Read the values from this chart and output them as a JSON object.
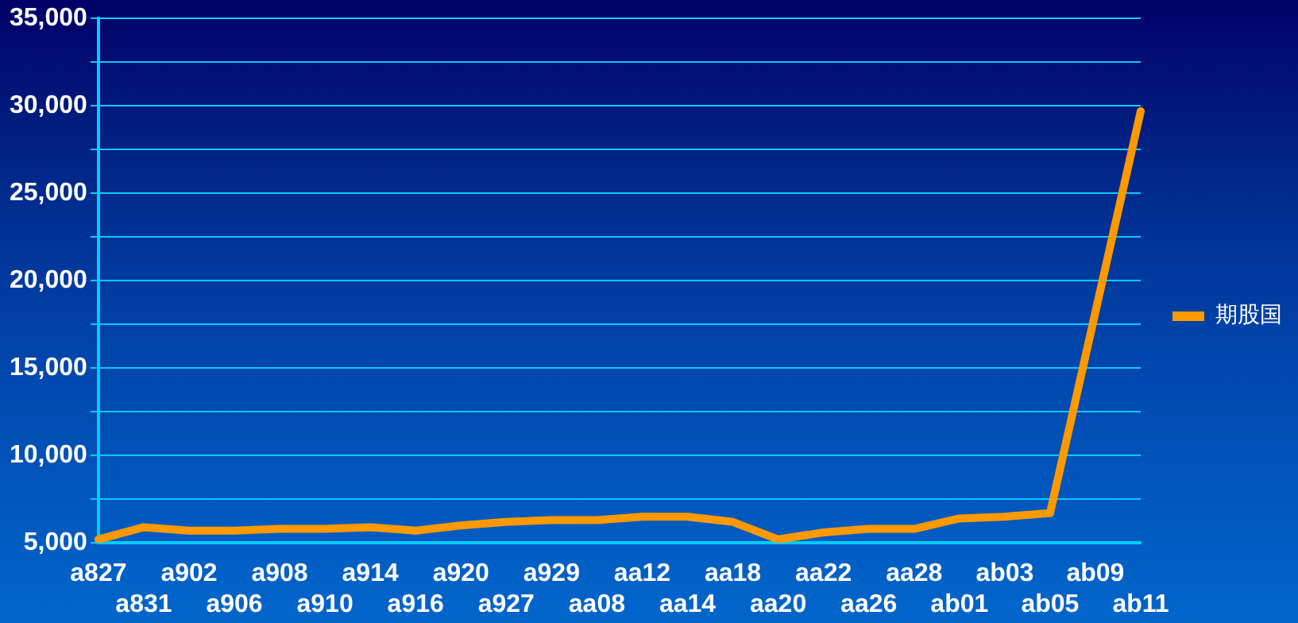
{
  "chart_data": {
    "type": "line",
    "categories": [
      "a827",
      "a831",
      "a902",
      "a906",
      "a908",
      "a910",
      "a914",
      "a916",
      "a920",
      "a927",
      "a929",
      "aa08",
      "aa12",
      "aa14",
      "aa18",
      "aa20",
      "aa22",
      "aa26",
      "aa28",
      "ab01",
      "ab03",
      "ab05",
      "ab09",
      "ab11"
    ],
    "series": [
      {
        "name": "期股国",
        "color": "#ff9900",
        "values": [
          5200,
          5900,
          5700,
          5700,
          5800,
          5800,
          5900,
          5700,
          6000,
          6200,
          6300,
          6300,
          6500,
          6500,
          6200,
          5200,
          5600,
          5800,
          5800,
          6400,
          6500,
          6700,
          18200,
          29700
        ]
      }
    ],
    "ylim": [
      5000,
      35000
    ],
    "yticks": [
      "5,000",
      {
        "value": 7500,
        "label": null
      },
      "10,000",
      {
        "value": 12500,
        "label": null
      },
      {
        "value": 15000,
        "label": "15,000"
      },
      {
        "value": 17500,
        "label": null
      },
      {
        "value": 20000,
        "label": "20,000"
      },
      {
        "value": 22500,
        "label": null
      },
      {
        "value": 25000,
        "label": "25,000"
      },
      {
        "value": 27500,
        "label": null
      },
      {
        "value": 30000,
        "label": "30,000"
      },
      {
        "value": 32500,
        "label": null
      },
      {
        "value": 35000,
        "label": "35,000"
      }
    ],
    "grid": "y",
    "legend": "right",
    "marker": "none",
    "line_style": "solid"
  }
}
